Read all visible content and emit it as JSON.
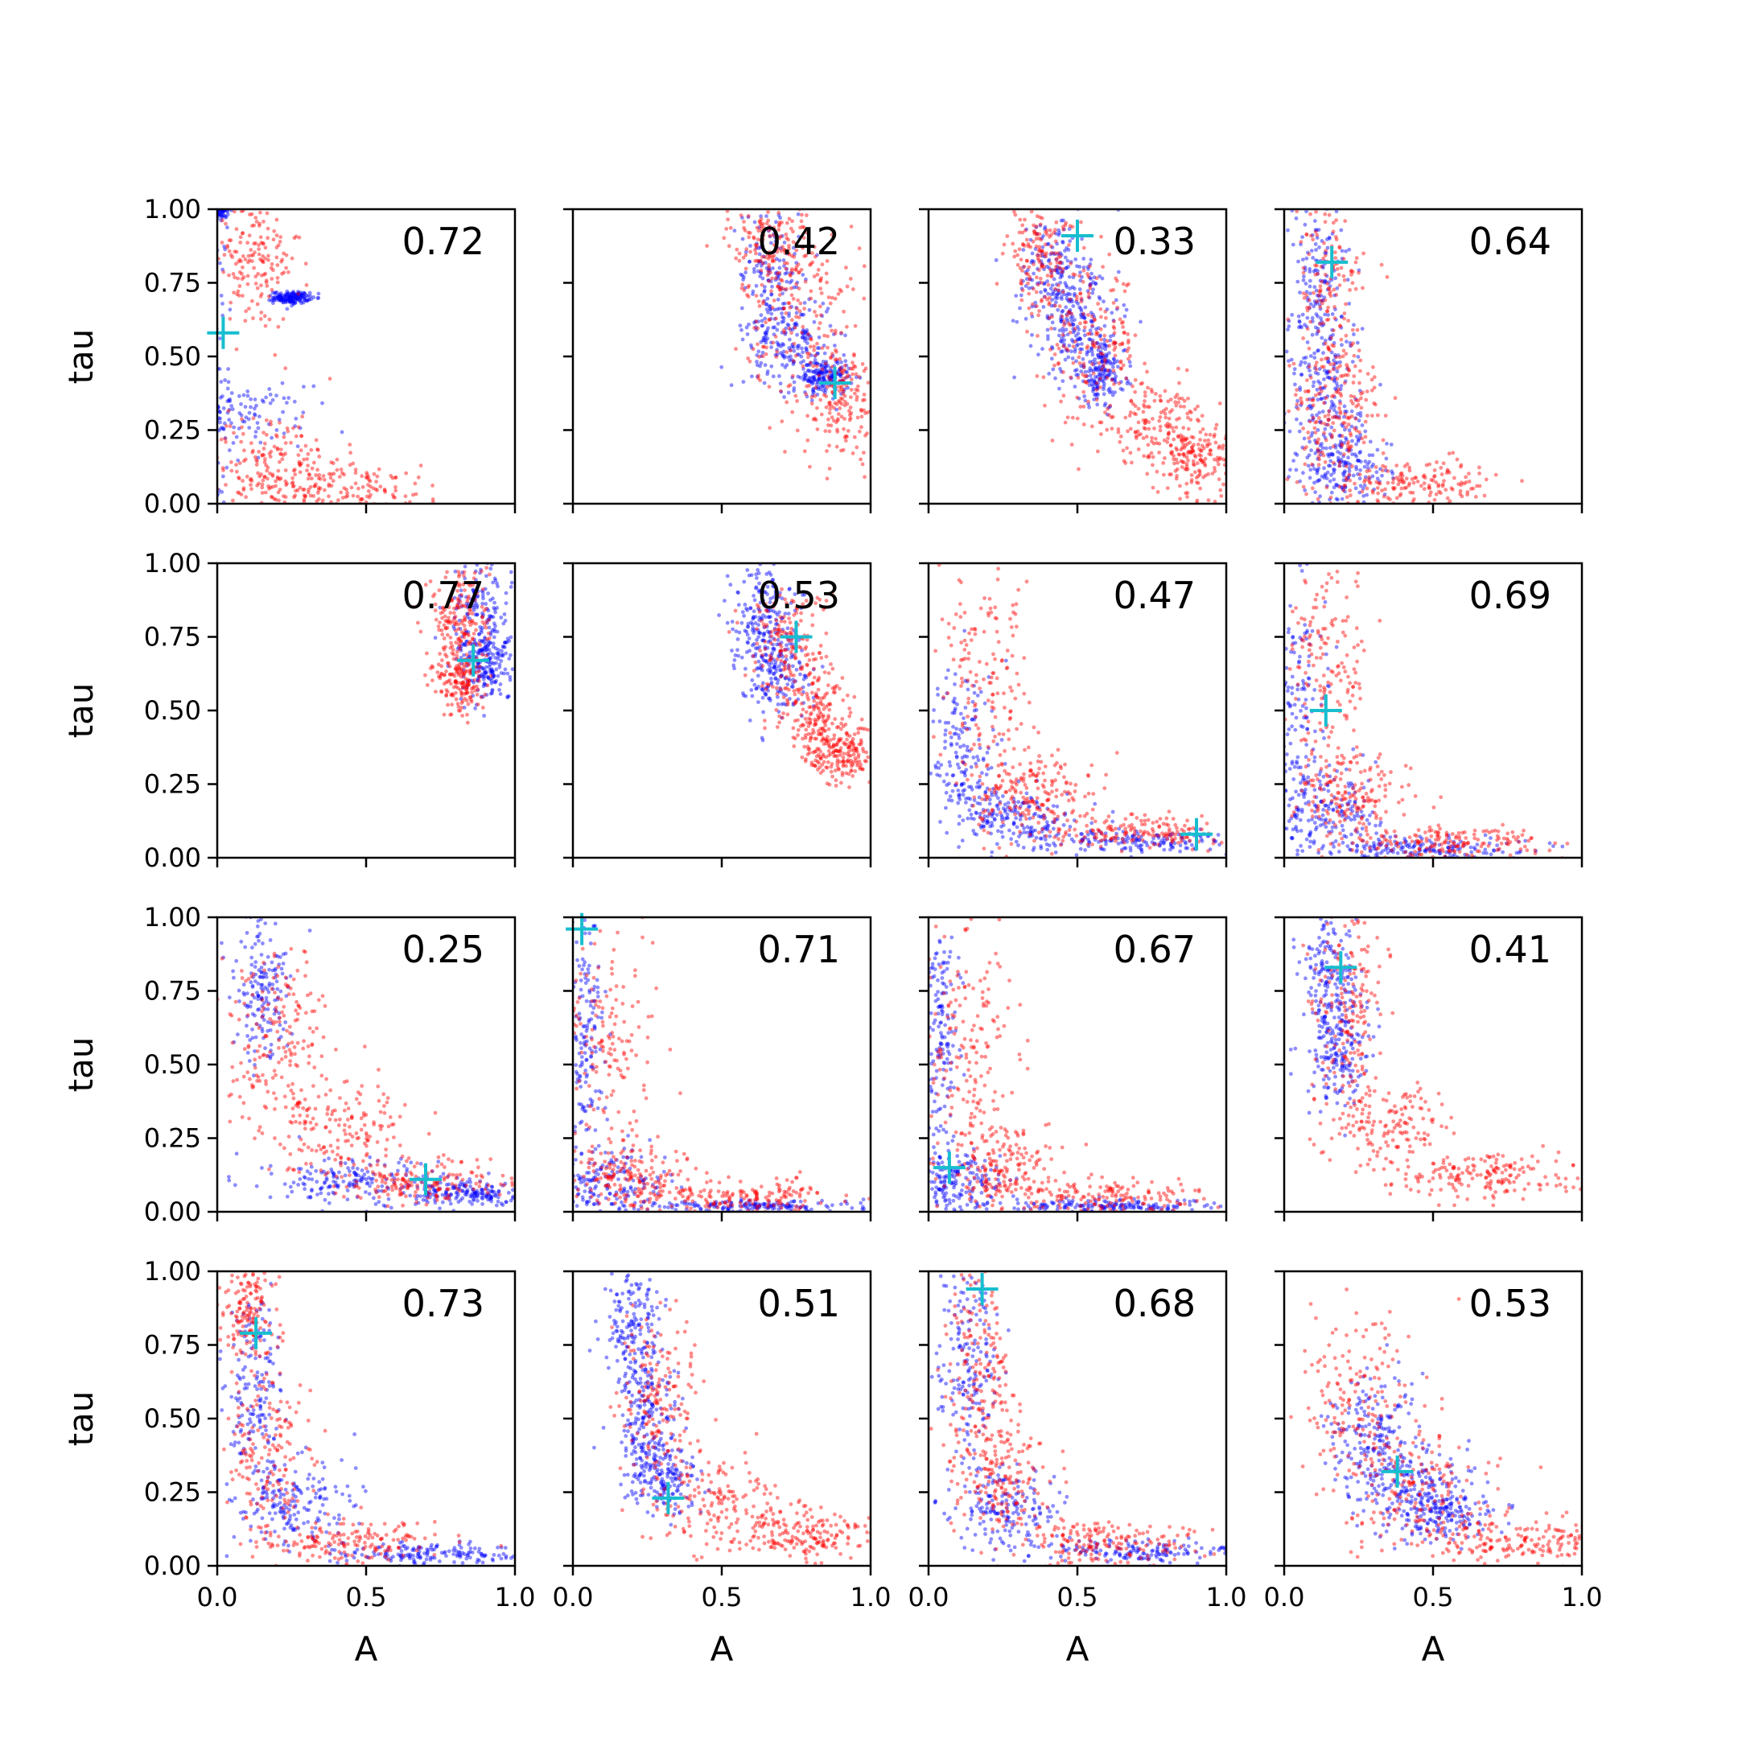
{
  "chart_data": {
    "type": "scatter",
    "layout": "4x4 grid of scatter panels",
    "xlabel": "A",
    "ylabel": "tau",
    "xlim": [
      0,
      1
    ],
    "ylim": [
      0,
      1
    ],
    "xticks": [
      "0.0",
      "0.5",
      "1.0"
    ],
    "yticks": [
      "0.00",
      "0.25",
      "0.50",
      "0.75",
      "1.00"
    ],
    "grid": false,
    "colors": {
      "series_blue": "#0000ff",
      "series_red": "#ff0000",
      "marker": "#17becf"
    },
    "panels": [
      {
        "label": "0.72",
        "marker": [
          0.02,
          0.58
        ],
        "blue": [
          [
            0.0,
            0.0,
            0.03,
            0.95
          ],
          [
            0.0,
            1.0,
            0.02,
            0.02
          ],
          [
            0.0,
            0.3,
            0.15,
            0.05
          ],
          [
            0.25,
            0.7,
            0.03,
            0.01
          ]
        ],
        "red": [
          [
            0.12,
            0.82,
            0.08,
            0.12
          ],
          [
            0.18,
            0.15,
            0.12,
            0.08
          ],
          [
            0.4,
            0.05,
            0.2,
            0.04
          ]
        ]
      },
      {
        "label": "0.42",
        "marker": [
          0.88,
          0.41
        ],
        "blue": [
          [
            0.66,
            0.78,
            0.05,
            0.15
          ],
          [
            0.74,
            0.55,
            0.07,
            0.08
          ],
          [
            0.85,
            0.43,
            0.04,
            0.03
          ]
        ],
        "red": [
          [
            0.66,
            0.9,
            0.07,
            0.1
          ],
          [
            0.78,
            0.65,
            0.1,
            0.15
          ],
          [
            0.9,
            0.35,
            0.07,
            0.1
          ]
        ]
      },
      {
        "label": "0.33",
        "marker": [
          0.5,
          0.91
        ],
        "blue": [
          [
            0.42,
            0.78,
            0.06,
            0.1
          ],
          [
            0.5,
            0.6,
            0.07,
            0.1
          ],
          [
            0.58,
            0.45,
            0.04,
            0.06
          ]
        ],
        "red": [
          [
            0.38,
            0.85,
            0.06,
            0.1
          ],
          [
            0.55,
            0.55,
            0.08,
            0.12
          ],
          [
            0.75,
            0.28,
            0.1,
            0.07
          ],
          [
            0.9,
            0.15,
            0.06,
            0.06
          ]
        ]
      },
      {
        "label": "0.64",
        "marker": [
          0.16,
          0.82
        ],
        "blue": [
          [
            0.12,
            0.75,
            0.05,
            0.18
          ],
          [
            0.14,
            0.35,
            0.06,
            0.15
          ],
          [
            0.2,
            0.12,
            0.08,
            0.06
          ]
        ],
        "red": [
          [
            0.15,
            0.7,
            0.06,
            0.2
          ],
          [
            0.18,
            0.3,
            0.08,
            0.12
          ],
          [
            0.45,
            0.07,
            0.15,
            0.04
          ]
        ]
      },
      {
        "label": "0.77",
        "marker": [
          0.86,
          0.67
        ],
        "blue": [
          [
            0.88,
            0.82,
            0.05,
            0.1
          ],
          [
            0.9,
            0.65,
            0.04,
            0.06
          ]
        ],
        "red": [
          [
            0.82,
            0.82,
            0.05,
            0.1
          ],
          [
            0.82,
            0.6,
            0.04,
            0.06
          ]
        ]
      },
      {
        "label": "0.53",
        "marker": [
          0.75,
          0.75
        ],
        "blue": [
          [
            0.63,
            0.82,
            0.05,
            0.1
          ],
          [
            0.68,
            0.65,
            0.06,
            0.08
          ]
        ],
        "red": [
          [
            0.72,
            0.72,
            0.07,
            0.1
          ],
          [
            0.82,
            0.48,
            0.06,
            0.08
          ],
          [
            0.9,
            0.35,
            0.05,
            0.05
          ]
        ]
      },
      {
        "label": "0.47",
        "marker": [
          0.9,
          0.08
        ],
        "blue": [
          [
            0.12,
            0.35,
            0.06,
            0.15
          ],
          [
            0.3,
            0.13,
            0.1,
            0.05
          ],
          [
            0.7,
            0.06,
            0.18,
            0.02
          ]
        ],
        "red": [
          [
            0.2,
            0.55,
            0.08,
            0.2
          ],
          [
            0.35,
            0.22,
            0.1,
            0.07
          ],
          [
            0.7,
            0.09,
            0.15,
            0.03
          ]
        ]
      },
      {
        "label": "0.69",
        "marker": [
          0.14,
          0.5
        ],
        "blue": [
          [
            0.05,
            0.5,
            0.05,
            0.25
          ],
          [
            0.15,
            0.15,
            0.1,
            0.08
          ],
          [
            0.5,
            0.03,
            0.2,
            0.02
          ]
        ],
        "red": [
          [
            0.15,
            0.65,
            0.07,
            0.2
          ],
          [
            0.22,
            0.2,
            0.1,
            0.08
          ],
          [
            0.55,
            0.05,
            0.15,
            0.03
          ]
        ]
      },
      {
        "label": "0.25",
        "marker": [
          0.7,
          0.11
        ],
        "blue": [
          [
            0.15,
            0.75,
            0.05,
            0.12
          ],
          [
            0.45,
            0.1,
            0.15,
            0.04
          ],
          [
            0.85,
            0.06,
            0.1,
            0.02
          ]
        ],
        "red": [
          [
            0.2,
            0.6,
            0.08,
            0.15
          ],
          [
            0.4,
            0.3,
            0.12,
            0.08
          ],
          [
            0.7,
            0.1,
            0.15,
            0.04
          ]
        ]
      },
      {
        "label": "0.71",
        "marker": [
          0.03,
          0.96
        ],
        "blue": [
          [
            0.04,
            0.55,
            0.03,
            0.25
          ],
          [
            0.12,
            0.1,
            0.1,
            0.06
          ],
          [
            0.6,
            0.02,
            0.2,
            0.01
          ]
        ],
        "red": [
          [
            0.12,
            0.55,
            0.08,
            0.22
          ],
          [
            0.2,
            0.12,
            0.1,
            0.06
          ],
          [
            0.6,
            0.05,
            0.18,
            0.03
          ]
        ]
      },
      {
        "label": "0.67",
        "marker": [
          0.07,
          0.15
        ],
        "blue": [
          [
            0.04,
            0.6,
            0.03,
            0.25
          ],
          [
            0.1,
            0.1,
            0.08,
            0.05
          ],
          [
            0.6,
            0.02,
            0.2,
            0.01
          ]
        ],
        "red": [
          [
            0.13,
            0.55,
            0.08,
            0.2
          ],
          [
            0.25,
            0.15,
            0.1,
            0.07
          ],
          [
            0.6,
            0.05,
            0.18,
            0.03
          ]
        ]
      },
      {
        "label": "0.41",
        "marker": [
          0.19,
          0.83
        ],
        "blue": [
          [
            0.15,
            0.8,
            0.05,
            0.12
          ],
          [
            0.18,
            0.55,
            0.05,
            0.1
          ]
        ],
        "red": [
          [
            0.22,
            0.72,
            0.06,
            0.15
          ],
          [
            0.35,
            0.3,
            0.1,
            0.08
          ],
          [
            0.7,
            0.12,
            0.15,
            0.04
          ]
        ]
      },
      {
        "label": "0.73",
        "marker": [
          0.13,
          0.79
        ],
        "blue": [
          [
            0.12,
            0.6,
            0.05,
            0.2
          ],
          [
            0.25,
            0.2,
            0.1,
            0.08
          ],
          [
            0.7,
            0.04,
            0.18,
            0.02
          ]
        ],
        "red": [
          [
            0.1,
            0.85,
            0.05,
            0.1
          ],
          [
            0.18,
            0.35,
            0.08,
            0.15
          ],
          [
            0.45,
            0.08,
            0.15,
            0.04
          ]
        ]
      },
      {
        "label": "0.51",
        "marker": [
          0.32,
          0.23
        ],
        "blue": [
          [
            0.2,
            0.8,
            0.05,
            0.12
          ],
          [
            0.25,
            0.5,
            0.06,
            0.12
          ],
          [
            0.3,
            0.3,
            0.06,
            0.06
          ]
        ],
        "red": [
          [
            0.3,
            0.55,
            0.07,
            0.15
          ],
          [
            0.5,
            0.22,
            0.12,
            0.08
          ],
          [
            0.8,
            0.1,
            0.12,
            0.04
          ]
        ]
      },
      {
        "label": "0.68",
        "marker": [
          0.18,
          0.94
        ],
        "blue": [
          [
            0.13,
            0.7,
            0.05,
            0.15
          ],
          [
            0.25,
            0.2,
            0.1,
            0.07
          ],
          [
            0.7,
            0.05,
            0.18,
            0.02
          ]
        ],
        "red": [
          [
            0.17,
            0.65,
            0.06,
            0.18
          ],
          [
            0.25,
            0.3,
            0.08,
            0.1
          ],
          [
            0.6,
            0.08,
            0.15,
            0.04
          ]
        ]
      },
      {
        "label": "0.53",
        "marker": [
          0.38,
          0.32
        ],
        "blue": [
          [
            0.3,
            0.45,
            0.08,
            0.1
          ],
          [
            0.42,
            0.28,
            0.1,
            0.07
          ],
          [
            0.55,
            0.18,
            0.1,
            0.05
          ]
        ],
        "red": [
          [
            0.25,
            0.55,
            0.1,
            0.15
          ],
          [
            0.45,
            0.25,
            0.12,
            0.1
          ],
          [
            0.75,
            0.08,
            0.15,
            0.04
          ]
        ]
      }
    ]
  }
}
